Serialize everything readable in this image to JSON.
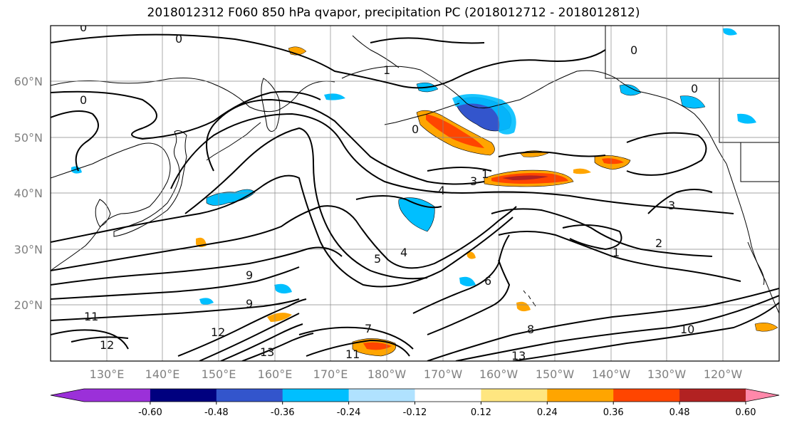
{
  "title": "2018012312 F060 850 hPa qvapor, precipitation PC (2018012712 - 2018012812)",
  "lat_labels": [
    "60°N",
    "50°N",
    "40°N",
    "30°N",
    "20°N"
  ],
  "lon_labels": [
    "130°E",
    "140°E",
    "150°E",
    "160°E",
    "170°E",
    "180°W",
    "170°W",
    "160°W",
    "150°W",
    "140°W",
    "130°W",
    "120°W"
  ],
  "colorbar": {
    "colors": [
      "#9b30d9",
      "#00007f",
      "#3355cc",
      "#00bfff",
      "#b0e2ff",
      "#ffffff",
      "#ffe680",
      "#ffa500",
      "#ff4500",
      "#b22222",
      "#ff88aa"
    ],
    "tick_labels": [
      "-0.60",
      "-0.48",
      "-0.36",
      "-0.24",
      "-0.12",
      "0.12",
      "0.24",
      "0.36",
      "0.48",
      "0.60"
    ]
  },
  "contour_labels": [
    "0",
    "0",
    "0",
    "0",
    "0",
    "0",
    "1",
    "1",
    "1",
    "2",
    "3",
    "3",
    "4",
    "4",
    "5",
    "6",
    "7",
    "8",
    "9",
    "9",
    "10",
    "11",
    "11",
    "12",
    "12",
    "13",
    "13"
  ]
}
